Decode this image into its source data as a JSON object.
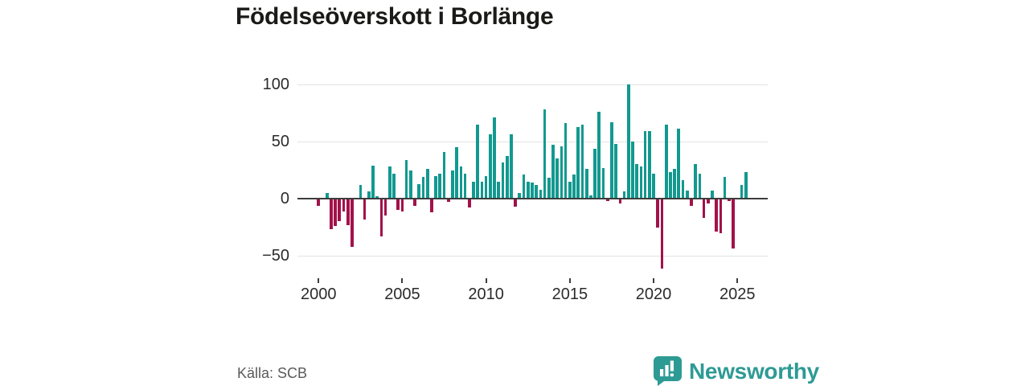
{
  "title": "Födelseöverskott i Borlänge",
  "source": "Källa: SCB",
  "branding": {
    "name": "Newsworthy",
    "logo_icon": "newsworthy-speech-bubble-bar-chart-badge",
    "brand_color": "#2e9a94"
  },
  "chart_data": {
    "type": "bar",
    "title": "Födelseöverskott i Borlänge",
    "frequency": "quarterly",
    "start_period": "2000-Q1",
    "end_period": "2025-Q3",
    "xlabel": "",
    "ylabel": "",
    "legend": false,
    "grid": "horizontal",
    "ylim": [
      -70,
      112
    ],
    "y_ticks": [
      100,
      50,
      0,
      -50
    ],
    "y_tick_labels": [
      "100",
      "50",
      "0",
      "−50"
    ],
    "x_tick_years": [
      2000,
      2005,
      2010,
      2015,
      2020,
      2025
    ],
    "colors": {
      "positive": "#12998f",
      "negative": "#a2124a"
    },
    "values": [
      -6,
      0,
      5,
      -27,
      -24,
      -20,
      -11,
      -23,
      -42,
      0,
      12,
      -18,
      6,
      29,
      2,
      -33,
      -15,
      28,
      22,
      -10,
      -11,
      34,
      25,
      -6,
      13,
      19,
      26,
      -12,
      20,
      22,
      41,
      -3,
      25,
      45,
      28,
      22,
      -8,
      15,
      65,
      15,
      20,
      56,
      71,
      15,
      32,
      37,
      56,
      -7,
      5,
      21,
      15,
      14,
      12,
      8,
      78,
      18,
      47,
      35,
      46,
      66,
      15,
      21,
      63,
      65,
      26,
      3,
      44,
      76,
      27,
      -2,
      67,
      48,
      -4,
      6,
      100,
      50,
      30,
      28,
      59,
      59,
      22,
      -25,
      -61,
      65,
      23,
      26,
      61,
      16,
      7,
      -6,
      30,
      22,
      -17,
      -4,
      7,
      -29,
      -30,
      19,
      -2,
      -44,
      0,
      12,
      23
    ]
  }
}
